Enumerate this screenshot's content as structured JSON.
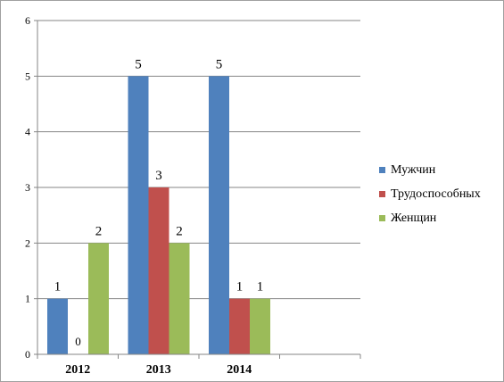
{
  "chart_data": {
    "type": "bar",
    "title": "",
    "xlabel": "",
    "ylabel": "",
    "categories": [
      "2012",
      "2013",
      "2014",
      ""
    ],
    "ylim": [
      0,
      6
    ],
    "yticks": [
      0,
      1,
      2,
      3,
      4,
      5,
      6
    ],
    "grid": true,
    "legend_position": "right",
    "series": [
      {
        "name": "Мужчин",
        "color": "#4f81bd",
        "values": [
          1,
          5,
          5,
          null
        ]
      },
      {
        "name": "Трудоспособных",
        "color": "#c0504d",
        "values": [
          0,
          3,
          1,
          null
        ]
      },
      {
        "name": "Женщин",
        "color": "#9bbb59",
        "values": [
          2,
          2,
          1,
          null
        ]
      }
    ]
  }
}
